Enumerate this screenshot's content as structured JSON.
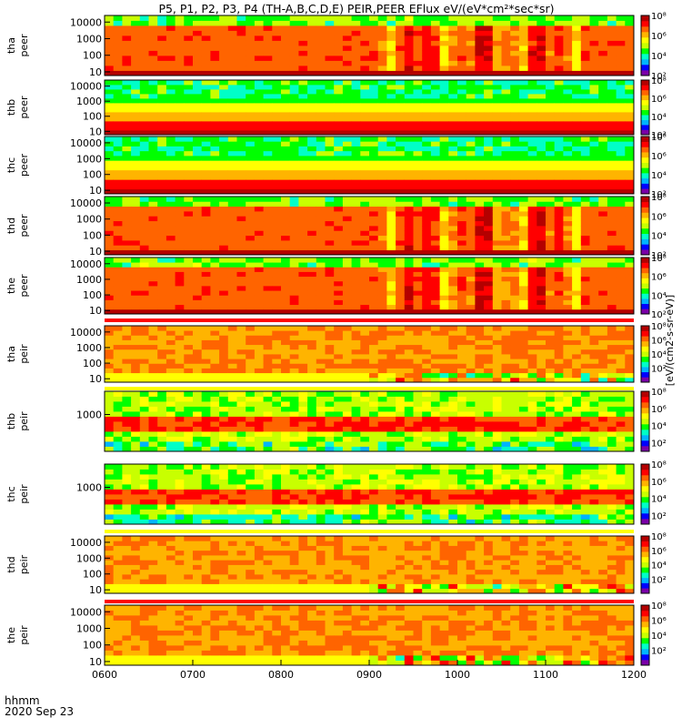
{
  "chart_data": {
    "type": "heatmap",
    "title": "P5, P1, P2, P3, P4 (TH-A,B,C,D,E) PEIR,PEER EFlux eV/(eV*cm²*sec*sr)",
    "x_axis": {
      "ticks": [
        "0600",
        "0700",
        "0800",
        "0900",
        "1000",
        "1100",
        "1200"
      ],
      "label_top": "hhmm",
      "label_bottom": "2020 Sep 23",
      "range": [
        "06:00",
        "12:00"
      ]
    },
    "colorbar_label": "[eV/(cm2-s-sr-eV)]",
    "colorbar_ticks": [
      "10²",
      "10⁴",
      "10⁶",
      "10⁸"
    ],
    "panels": [
      {
        "probe": "tha",
        "instrument": "peer",
        "label_top": "tha",
        "label_bottom": "peer",
        "ylog": true,
        "y_ticks": [
          "10",
          "100",
          "1000",
          "10000"
        ],
        "y_range": [
          6,
          25000
        ],
        "color_range": [
          100,
          100000000
        ],
        "profile": "electron_dynamic",
        "quality_bar": false
      },
      {
        "probe": "thb",
        "instrument": "peer",
        "label_top": "thb",
        "label_bottom": "peer",
        "ylog": true,
        "y_ticks": [
          "10",
          "100",
          "1000",
          "10000"
        ],
        "y_range": [
          6,
          25000
        ],
        "color_range": [
          100,
          100000000
        ],
        "profile": "electron_stable",
        "quality_bar": false
      },
      {
        "probe": "thc",
        "instrument": "peer",
        "label_top": "thc",
        "label_bottom": "peer",
        "ylog": true,
        "y_ticks": [
          "10",
          "100",
          "1000",
          "10000"
        ],
        "y_range": [
          6,
          25000
        ],
        "color_range": [
          100,
          100000000
        ],
        "profile": "electron_stable",
        "quality_bar": false
      },
      {
        "probe": "thd",
        "instrument": "peer",
        "label_top": "thd",
        "label_bottom": "peer",
        "ylog": true,
        "y_ticks": [
          "10",
          "100",
          "1000",
          "10000"
        ],
        "y_range": [
          6,
          25000
        ],
        "color_range": [
          100,
          100000000
        ],
        "profile": "electron_dynamic",
        "quality_bar": false
      },
      {
        "probe": "the",
        "instrument": "peer",
        "label_top": "the",
        "label_bottom": "peer",
        "ylog": true,
        "y_ticks": [
          "10",
          "100",
          "1000",
          "10000"
        ],
        "y_range": [
          6,
          25000
        ],
        "color_range": [
          100,
          100000000
        ],
        "profile": "electron_dynamic",
        "quality_bar": false
      },
      {
        "probe": "tha",
        "instrument": "peir",
        "label_top": "tha",
        "label_bottom": "peir",
        "ylog": true,
        "y_ticks": [
          "10",
          "100",
          "1000",
          "10000"
        ],
        "y_range": [
          6,
          25000
        ],
        "color_range": [
          1,
          100000000
        ],
        "profile": "ion_dynamic",
        "quality_bar": true,
        "quality_color": "red"
      },
      {
        "probe": "thb",
        "instrument": "peir",
        "label_top": "thb",
        "label_bottom": "peir",
        "ylog": true,
        "y_ticks": [
          "1000"
        ],
        "y_range": [
          6,
          25000
        ],
        "color_range": [
          10,
          100000000
        ],
        "profile": "ion_stable",
        "quality_bar": true,
        "quality_color": "yellow"
      },
      {
        "probe": "thc",
        "instrument": "peir",
        "label_top": "thc",
        "label_bottom": "peir",
        "ylog": true,
        "y_ticks": [
          "1000"
        ],
        "y_range": [
          6,
          25000
        ],
        "color_range": [
          10,
          100000000
        ],
        "profile": "ion_stable",
        "quality_bar": false
      },
      {
        "probe": "thd",
        "instrument": "peir",
        "label_top": "thd",
        "label_bottom": "peir",
        "ylog": true,
        "y_ticks": [
          "10",
          "100",
          "1000",
          "10000"
        ],
        "y_range": [
          6,
          25000
        ],
        "color_range": [
          1,
          100000000
        ],
        "profile": "ion_dynamic",
        "quality_bar": true,
        "quality_color": "yellow"
      },
      {
        "probe": "the",
        "instrument": "peir",
        "label_top": "the",
        "label_bottom": "peir",
        "ylog": true,
        "y_ticks": [
          "10",
          "100",
          "1000",
          "10000"
        ],
        "y_range": [
          6,
          25000
        ],
        "color_range": [
          1,
          100000000
        ],
        "profile": "ion_dynamic",
        "quality_bar": true,
        "quality_color": "red"
      }
    ],
    "colormap": [
      "#7a00a8",
      "#0000ff",
      "#00b4ff",
      "#00ffc8",
      "#00ff00",
      "#c8ff00",
      "#ffff00",
      "#ffb400",
      "#ff6400",
      "#ff0000",
      "#b40000"
    ]
  }
}
